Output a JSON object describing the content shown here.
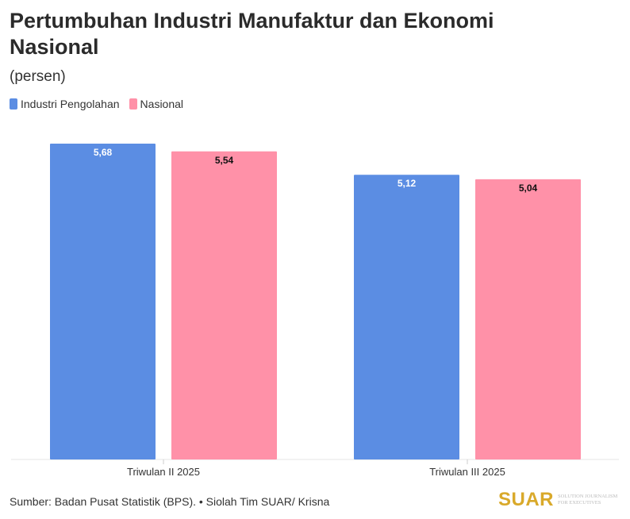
{
  "chart_data": {
    "type": "bar",
    "title": "Pertumbuhan Industri Manufaktur dan Ekonomi Nasional",
    "subtitle": "(persen)",
    "categories": [
      "Triwulan II 2025",
      "Triwulan III 2025"
    ],
    "series": [
      {
        "name": "Industri Pengolahan",
        "values": [
          5.68,
          5.12
        ],
        "labels": [
          "5,68",
          "5,12"
        ],
        "color": "#5b8de3",
        "label_color": "#ffffff"
      },
      {
        "name": "Nasional",
        "values": [
          5.54,
          5.04
        ],
        "labels": [
          "5,54",
          "5,04"
        ],
        "color": "#ff91a8",
        "label_color": "#111111"
      }
    ],
    "ylim": [
      0,
      5.68
    ],
    "grid": false,
    "legend": "top-left",
    "xlabel": "",
    "ylabel": ""
  },
  "footer": {
    "source": "Sumber: Badan Pusat Statistik (BPS). • Siolah Tim SUAR/ Krisna"
  },
  "brand": {
    "name": "SUAR",
    "tagline": "Solution Journalism for Executives"
  }
}
